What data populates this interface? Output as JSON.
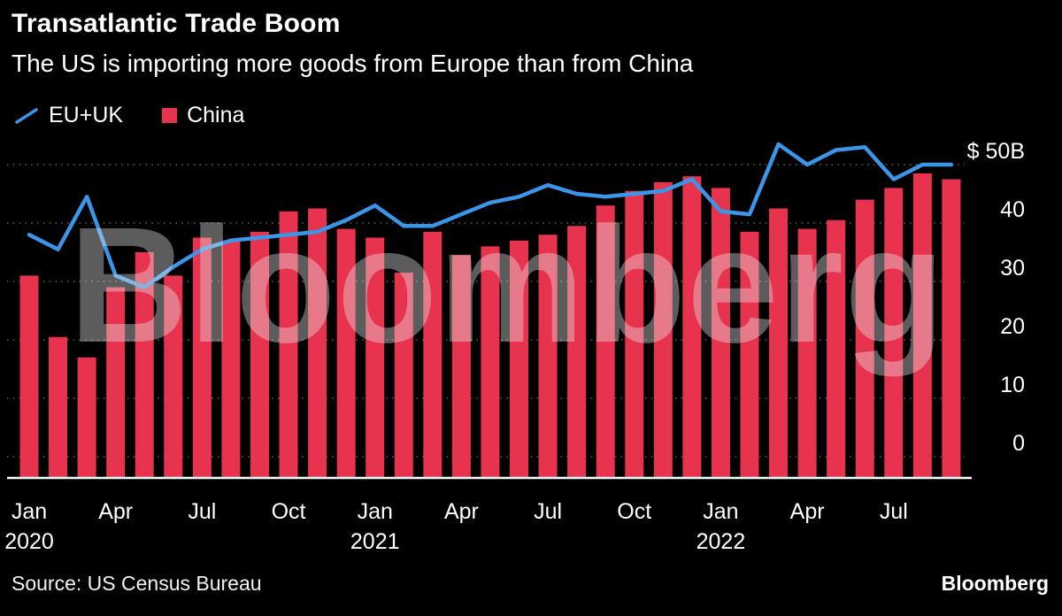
{
  "header": {
    "title": "Transatlantic Trade Boom",
    "subtitle": "The US is importing more goods from Europe than from China"
  },
  "legend": {
    "items": [
      {
        "label": "EU+UK",
        "marker": "line",
        "color": "#3a96e8"
      },
      {
        "label": "China",
        "marker": "square",
        "color": "#e8334e"
      }
    ]
  },
  "footer": {
    "source": "Source: US Census Bureau",
    "brand": "Bloomberg"
  },
  "chart_data": {
    "type": "bar+line",
    "title": "Transatlantic Trade Boom",
    "subtitle": "The US is importing more goods from Europe than from China",
    "unit": "$B",
    "background": "#000000",
    "legend_position": "top-left",
    "grid": {
      "horizontal": true,
      "style": "dotted"
    },
    "watermark": "Bloomberg",
    "ylim": [
      0,
      50
    ],
    "yticks": {
      "values": [
        0,
        10,
        20,
        30,
        40,
        50
      ],
      "labels": [
        "0",
        "10",
        "20",
        "30",
        "40",
        "$ 50B"
      ]
    },
    "x": [
      "Jan 2020",
      "Feb 2020",
      "Mar 2020",
      "Apr 2020",
      "May 2020",
      "Jun 2020",
      "Jul 2020",
      "Aug 2020",
      "Sep 2020",
      "Oct 2020",
      "Nov 2020",
      "Dec 2020",
      "Jan 2021",
      "Feb 2021",
      "Mar 2021",
      "Apr 2021",
      "May 2021",
      "Jun 2021",
      "Jul 2021",
      "Aug 2021",
      "Sep 2021",
      "Oct 2021",
      "Nov 2021",
      "Dec 2021",
      "Jan 2022",
      "Feb 2022",
      "Mar 2022",
      "Apr 2022",
      "May 2022",
      "Jun 2022",
      "Jul 2022",
      "Aug 2022",
      "Sep 2022"
    ],
    "xticks": [
      {
        "i": 0,
        "label": "Jan",
        "year": "2020"
      },
      {
        "i": 3,
        "label": "Apr"
      },
      {
        "i": 6,
        "label": "Jul"
      },
      {
        "i": 9,
        "label": "Oct"
      },
      {
        "i": 12,
        "label": "Jan",
        "year": "2021"
      },
      {
        "i": 15,
        "label": "Apr"
      },
      {
        "i": 18,
        "label": "Jul"
      },
      {
        "i": 21,
        "label": "Oct"
      },
      {
        "i": 24,
        "label": "Jan",
        "year": "2022"
      },
      {
        "i": 27,
        "label": "Apr"
      },
      {
        "i": 30,
        "label": "Jul"
      }
    ],
    "series": [
      {
        "name": "EU+UK",
        "type": "line",
        "color": "#3a96e8",
        "values": [
          38,
          35.5,
          44.5,
          31,
          29,
          32.5,
          35.5,
          37,
          37.5,
          38,
          38.5,
          40.5,
          43,
          39.5,
          39.5,
          41.5,
          43.5,
          44.5,
          46.5,
          45,
          44.5,
          45,
          45.5,
          47.5,
          42,
          41.5,
          53.5,
          50,
          52.5,
          53,
          47.5,
          50,
          50
        ]
      },
      {
        "name": "China",
        "type": "bar",
        "color": "#e8334e",
        "values": [
          31,
          20.5,
          17,
          29,
          35,
          31,
          37.5,
          37,
          38.5,
          42,
          42.5,
          39,
          37.5,
          31.5,
          38.5,
          34.5,
          36,
          37,
          38,
          39.5,
          43,
          45.5,
          47,
          48,
          46,
          38.5,
          42.5,
          39,
          40.5,
          44,
          46,
          48.5,
          47.5
        ]
      }
    ]
  }
}
